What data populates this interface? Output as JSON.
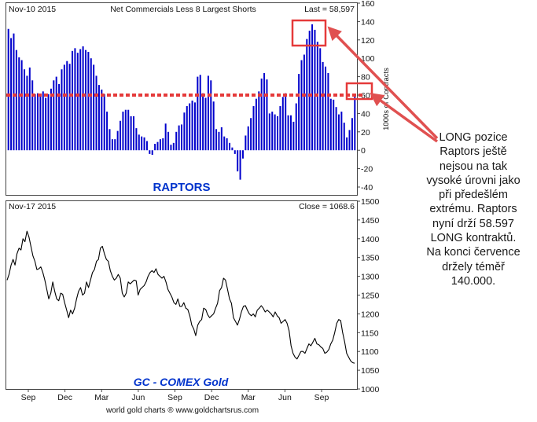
{
  "colors": {
    "bars": "#0000cc",
    "price": "#000000",
    "threshold": "#e53a3a",
    "highlight": "#e53a3a",
    "arrow": "#e05050",
    "panel_title": "#0033cc"
  },
  "annotation": {
    "text": "LONG pozice Raptors ještě nejsou na tak vysoké úrovni jako při předešlém extrému. Raptors nyní drží 58.597 LONG kontraktů. Na konci července držely téměř 140.000."
  },
  "footer": "world gold charts ® www.goldchartsrus.com",
  "chart_data": [
    {
      "type": "bar",
      "title": "Net Commercials Less 8 Largest Shorts",
      "date_label": "Nov-10  2015",
      "last_label": "Last = 58,597",
      "panel_label": "RAPTORS",
      "ylabel": "1000s of Contracts",
      "ylim": [
        -40,
        160
      ],
      "yticks": [
        -40,
        -20,
        0,
        20,
        40,
        60,
        80,
        100,
        120,
        140,
        160
      ],
      "ytick_labels": [
        "-40",
        "-20",
        "0",
        "20",
        "40",
        "60",
        "80",
        "100",
        "120",
        "140",
        "160"
      ],
      "threshold": 60,
      "values": [
        132,
        122,
        127,
        109,
        101,
        98,
        88,
        81,
        90,
        76,
        61,
        62,
        61,
        64,
        57,
        61,
        67,
        76,
        80,
        72,
        88,
        93,
        97,
        94,
        108,
        111,
        106,
        110,
        113,
        109,
        107,
        100,
        93,
        81,
        71,
        66,
        61,
        42,
        23,
        12,
        12,
        21,
        32,
        42,
        44,
        44,
        37,
        37,
        24,
        17,
        15,
        14,
        10,
        -4,
        -5,
        7,
        9,
        12,
        13,
        29,
        20,
        6,
        8,
        20,
        27,
        28,
        41,
        48,
        51,
        54,
        52,
        80,
        82,
        62,
        57,
        81,
        76,
        53,
        23,
        20,
        25,
        15,
        13,
        8,
        3,
        -4,
        -23,
        -32,
        -9,
        16,
        26,
        35,
        48,
        56,
        64,
        78,
        84,
        77,
        40,
        42,
        39,
        37,
        48,
        58,
        62,
        38,
        38,
        31,
        51,
        83,
        98,
        104,
        121,
        130,
        137,
        131,
        118,
        111,
        96,
        91,
        84,
        56,
        55,
        47,
        39,
        42,
        30,
        14,
        22,
        35,
        59
      ]
    },
    {
      "type": "line",
      "title": "GC - COMEX Gold",
      "date_label": "Nov-17  2015",
      "last_label": "Close = 1068.6",
      "ylim": [
        1000,
        1500
      ],
      "yticks": [
        1000,
        1050,
        1100,
        1150,
        1200,
        1250,
        1300,
        1350,
        1400,
        1450,
        1500
      ],
      "ytick_labels": [
        "1000",
        "1050",
        "1100",
        "1150",
        "1200",
        "1250",
        "1300",
        "1350",
        "1400",
        "1450",
        "1500"
      ],
      "x_labels": [
        "Sep",
        "Dec",
        "Mar",
        "Jun",
        "Sep",
        "Dec",
        "Mar",
        "Jun",
        "Sep"
      ],
      "values": [
        1290,
        1305,
        1330,
        1345,
        1330,
        1360,
        1375,
        1370,
        1400,
        1392,
        1420,
        1405,
        1380,
        1355,
        1340,
        1318,
        1320,
        1325,
        1310,
        1290,
        1265,
        1240,
        1255,
        1285,
        1260,
        1240,
        1235,
        1255,
        1252,
        1230,
        1210,
        1190,
        1210,
        1200,
        1215,
        1240,
        1260,
        1270,
        1250,
        1255,
        1285,
        1270,
        1290,
        1310,
        1318,
        1340,
        1345,
        1375,
        1380,
        1360,
        1345,
        1340,
        1315,
        1300,
        1290,
        1295,
        1305,
        1295,
        1255,
        1245,
        1255,
        1285,
        1280,
        1285,
        1290,
        1288,
        1250,
        1265,
        1270,
        1275,
        1285,
        1300,
        1310,
        1315,
        1310,
        1320,
        1305,
        1300,
        1295,
        1300,
        1285,
        1265,
        1255,
        1245,
        1230,
        1225,
        1240,
        1220,
        1220,
        1230,
        1215,
        1212,
        1195,
        1170,
        1160,
        1142,
        1170,
        1180,
        1185,
        1215,
        1212,
        1198,
        1190,
        1195,
        1200,
        1215,
        1228,
        1262,
        1270,
        1295,
        1290,
        1265,
        1240,
        1228,
        1190,
        1180,
        1170,
        1185,
        1205,
        1220,
        1222,
        1210,
        1200,
        1195,
        1200,
        1192,
        1210,
        1215,
        1222,
        1215,
        1205,
        1210,
        1205,
        1200,
        1192,
        1205,
        1195,
        1190,
        1175,
        1180,
        1185,
        1175,
        1155,
        1115,
        1095,
        1085,
        1080,
        1090,
        1100,
        1100,
        1095,
        1108,
        1120,
        1115,
        1125,
        1135,
        1120,
        1118,
        1112,
        1108,
        1095,
        1098,
        1105,
        1120,
        1130,
        1150,
        1175,
        1185,
        1182,
        1150,
        1125,
        1095,
        1085,
        1075,
        1070,
        1068.6
      ]
    }
  ]
}
